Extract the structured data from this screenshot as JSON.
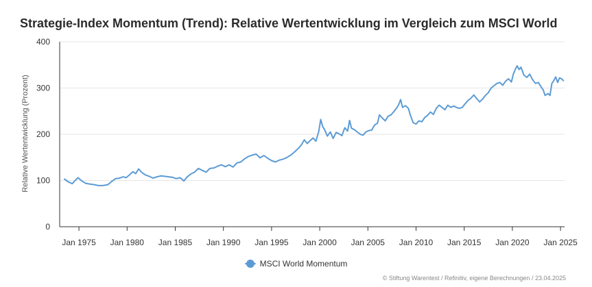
{
  "chart_data": {
    "type": "line",
    "title": "Strategie-Index Momentum (Trend): Relative Wertentwicklung im Vergleich zum MSCI World",
    "xlabel": "",
    "ylabel": "Relative Wertentwicklung (Prozent)",
    "ylim": [
      0,
      400
    ],
    "xlim": [
      "1973-01",
      "2025-04"
    ],
    "grid": true,
    "legend_position": "bottom",
    "y_ticks": [
      "0",
      "100",
      "200",
      "300",
      "400"
    ],
    "x_ticks": [
      {
        "label": "Jan 1975",
        "value": 1975.0
      },
      {
        "label": "Jan 1980",
        "value": 1980.0
      },
      {
        "label": "Jan 1985",
        "value": 1985.0
      },
      {
        "label": "Jan 1990",
        "value": 1990.0
      },
      {
        "label": "Jan 1995",
        "value": 1995.0
      },
      {
        "label": "Jan 2000",
        "value": 2000.0
      },
      {
        "label": "Jan 2005",
        "value": 2005.0
      },
      {
        "label": "Jan 2010",
        "value": 2010.0
      },
      {
        "label": "Jan 2015",
        "value": 2015.0
      },
      {
        "label": "Jan 2020",
        "value": 2020.0
      },
      {
        "label": "Jan 2025",
        "value": 2025.0
      }
    ],
    "series": [
      {
        "name": "MSCI World Momentum",
        "color": "#5b9bd5",
        "points": [
          [
            1973.5,
            103
          ],
          [
            1973.9,
            97
          ],
          [
            1974.3,
            93
          ],
          [
            1974.6,
            100
          ],
          [
            1974.9,
            106
          ],
          [
            1975.3,
            99
          ],
          [
            1975.7,
            94
          ],
          [
            1976.2,
            92
          ],
          [
            1976.6,
            91
          ],
          [
            1977.0,
            89
          ],
          [
            1977.5,
            89
          ],
          [
            1978.0,
            91
          ],
          [
            1978.4,
            98
          ],
          [
            1978.8,
            104
          ],
          [
            1979.2,
            105
          ],
          [
            1979.6,
            108
          ],
          [
            1979.9,
            106
          ],
          [
            1980.3,
            113
          ],
          [
            1980.6,
            119
          ],
          [
            1980.9,
            115
          ],
          [
            1981.2,
            125
          ],
          [
            1981.5,
            118
          ],
          [
            1981.9,
            112
          ],
          [
            1982.3,
            109
          ],
          [
            1982.7,
            105
          ],
          [
            1983.1,
            108
          ],
          [
            1983.5,
            110
          ],
          [
            1983.9,
            109
          ],
          [
            1984.3,
            108
          ],
          [
            1984.7,
            107
          ],
          [
            1985.1,
            104
          ],
          [
            1985.5,
            106
          ],
          [
            1985.9,
            99
          ],
          [
            1986.2,
            107
          ],
          [
            1986.6,
            114
          ],
          [
            1987.0,
            118
          ],
          [
            1987.4,
            126
          ],
          [
            1987.8,
            122
          ],
          [
            1988.2,
            118
          ],
          [
            1988.6,
            126
          ],
          [
            1989.0,
            127
          ],
          [
            1989.4,
            131
          ],
          [
            1989.8,
            134
          ],
          [
            1990.2,
            130
          ],
          [
            1990.6,
            134
          ],
          [
            1991.0,
            129
          ],
          [
            1991.4,
            138
          ],
          [
            1991.8,
            140
          ],
          [
            1992.2,
            147
          ],
          [
            1992.6,
            152
          ],
          [
            1993.0,
            155
          ],
          [
            1993.4,
            157
          ],
          [
            1993.8,
            149
          ],
          [
            1994.2,
            154
          ],
          [
            1994.6,
            148
          ],
          [
            1995.0,
            143
          ],
          [
            1995.4,
            140
          ],
          [
            1995.8,
            144
          ],
          [
            1996.2,
            146
          ],
          [
            1996.6,
            150
          ],
          [
            1997.0,
            155
          ],
          [
            1997.4,
            162
          ],
          [
            1997.8,
            170
          ],
          [
            1998.1,
            177
          ],
          [
            1998.4,
            188
          ],
          [
            1998.7,
            180
          ],
          [
            1999.0,
            186
          ],
          [
            1999.3,
            192
          ],
          [
            1999.6,
            185
          ],
          [
            1999.9,
            206
          ],
          [
            2000.1,
            232
          ],
          [
            2000.3,
            217
          ],
          [
            2000.5,
            210
          ],
          [
            2000.8,
            196
          ],
          [
            2001.1,
            205
          ],
          [
            2001.4,
            191
          ],
          [
            2001.7,
            204
          ],
          [
            2002.0,
            201
          ],
          [
            2002.3,
            197
          ],
          [
            2002.6,
            214
          ],
          [
            2002.9,
            207
          ],
          [
            2003.1,
            230
          ],
          [
            2003.3,
            213
          ],
          [
            2003.6,
            210
          ],
          [
            2003.9,
            205
          ],
          [
            2004.2,
            200
          ],
          [
            2004.5,
            198
          ],
          [
            2004.8,
            205
          ],
          [
            2005.1,
            208
          ],
          [
            2005.4,
            209
          ],
          [
            2005.7,
            220
          ],
          [
            2006.0,
            224
          ],
          [
            2006.2,
            242
          ],
          [
            2006.5,
            235
          ],
          [
            2006.8,
            229
          ],
          [
            2007.1,
            239
          ],
          [
            2007.4,
            242
          ],
          [
            2007.7,
            249
          ],
          [
            2008.0,
            257
          ],
          [
            2008.2,
            264
          ],
          [
            2008.4,
            275
          ],
          [
            2008.6,
            258
          ],
          [
            2008.9,
            262
          ],
          [
            2009.2,
            256
          ],
          [
            2009.4,
            242
          ],
          [
            2009.7,
            225
          ],
          [
            2010.0,
            222
          ],
          [
            2010.3,
            229
          ],
          [
            2010.6,
            227
          ],
          [
            2010.9,
            236
          ],
          [
            2011.2,
            241
          ],
          [
            2011.5,
            248
          ],
          [
            2011.8,
            243
          ],
          [
            2012.1,
            256
          ],
          [
            2012.4,
            263
          ],
          [
            2012.7,
            258
          ],
          [
            2013.0,
            253
          ],
          [
            2013.3,
            263
          ],
          [
            2013.6,
            258
          ],
          [
            2013.9,
            261
          ],
          [
            2014.2,
            258
          ],
          [
            2014.5,
            256
          ],
          [
            2014.8,
            258
          ],
          [
            2015.1,
            266
          ],
          [
            2015.4,
            273
          ],
          [
            2015.7,
            278
          ],
          [
            2016.0,
            285
          ],
          [
            2016.3,
            277
          ],
          [
            2016.6,
            270
          ],
          [
            2016.9,
            276
          ],
          [
            2017.2,
            284
          ],
          [
            2017.5,
            290
          ],
          [
            2017.8,
            300
          ],
          [
            2018.1,
            305
          ],
          [
            2018.4,
            310
          ],
          [
            2018.7,
            312
          ],
          [
            2019.0,
            306
          ],
          [
            2019.3,
            315
          ],
          [
            2019.6,
            320
          ],
          [
            2019.9,
            313
          ],
          [
            2020.1,
            330
          ],
          [
            2020.3,
            340
          ],
          [
            2020.5,
            348
          ],
          [
            2020.7,
            340
          ],
          [
            2020.9,
            345
          ],
          [
            2021.2,
            328
          ],
          [
            2021.5,
            323
          ],
          [
            2021.8,
            330
          ],
          [
            2022.1,
            318
          ],
          [
            2022.4,
            310
          ],
          [
            2022.7,
            312
          ],
          [
            2023.0,
            302
          ],
          [
            2023.2,
            296
          ],
          [
            2023.4,
            284
          ],
          [
            2023.7,
            288
          ],
          [
            2023.9,
            284
          ],
          [
            2024.1,
            310
          ],
          [
            2024.3,
            316
          ],
          [
            2024.5,
            324
          ],
          [
            2024.7,
            312
          ],
          [
            2024.9,
            322
          ],
          [
            2025.1,
            320
          ],
          [
            2025.3,
            316
          ]
        ]
      }
    ]
  },
  "legend": {
    "label": "MSCI World Momentum",
    "color": "#5b9bd5"
  },
  "source": "© Stiftung Warentest / Refinitiv, eigene Berechnungen / 23.04.2025",
  "colors": {
    "grid": "#e6e6e6",
    "axis": "#333333"
  }
}
